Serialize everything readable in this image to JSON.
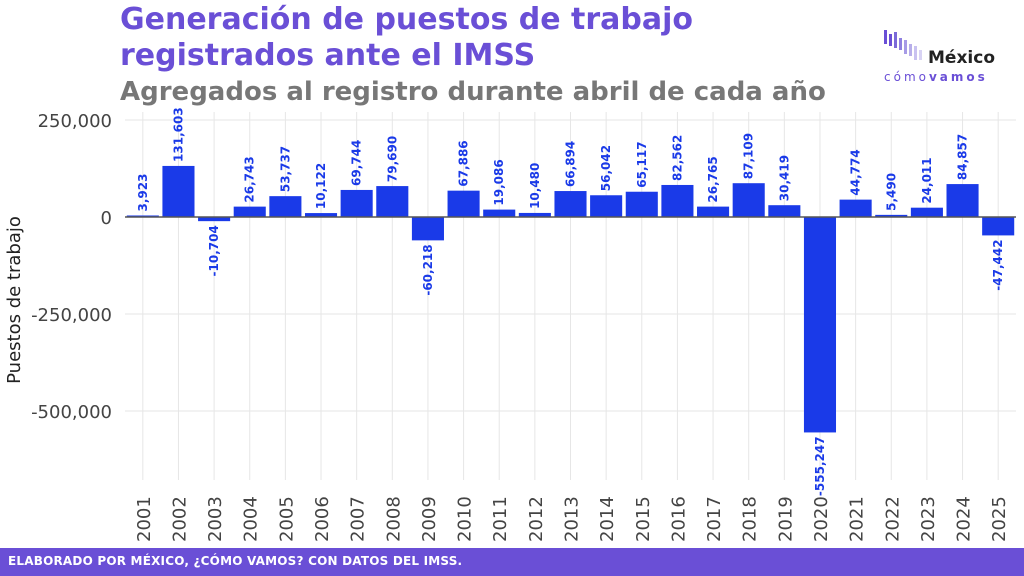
{
  "header": {
    "title": "Generación de puestos de trabajo registrados ante el IMSS",
    "subtitle": "Agregados al registro durante abril de cada año"
  },
  "logo": {
    "line1": "México",
    "line2_light": "cómo",
    "line2_bold": "vamos"
  },
  "footer": {
    "text": "ELABORADO POR MÉXICO, ¿CÓMO VAMOS? CON DATOS DEL IMSS."
  },
  "colors": {
    "bar": "#1a3ae8",
    "accent": "#6a4fd6",
    "grid": "#e6e6e6",
    "zero_line": "#555555"
  },
  "chart_data": {
    "type": "bar",
    "title": "Generación de puestos de trabajo registrados ante el IMSS",
    "subtitle": "Agregados al registro durante abril de cada año",
    "xlabel": "",
    "ylabel": "Puestos de trabajo",
    "ylim": [
      -650000,
      260000
    ],
    "yticks": [
      250000,
      0,
      -250000,
      -500000
    ],
    "ytick_labels": [
      "250,000",
      "0",
      "-250,000",
      "-500,000"
    ],
    "grid": true,
    "categories": [
      "2001",
      "2002",
      "2003",
      "2004",
      "2005",
      "2006",
      "2007",
      "2008",
      "2009",
      "2010",
      "2011",
      "2012",
      "2013",
      "2014",
      "2015",
      "2016",
      "2017",
      "2018",
      "2019",
      "2020",
      "2021",
      "2022",
      "2023",
      "2024",
      "2025"
    ],
    "values": [
      3923,
      131603,
      -10704,
      26743,
      53737,
      10122,
      69744,
      79690,
      -60218,
      67886,
      19086,
      10480,
      66894,
      56042,
      65117,
      82562,
      26765,
      87109,
      30419,
      -555247,
      44774,
      5490,
      24011,
      84857,
      -47442
    ],
    "labels": [
      "3,923",
      "131,603",
      "-10,704",
      "26,743",
      "53,737",
      "10,122",
      "69,744",
      "79,690",
      "-60,218",
      "67,886",
      "19,086",
      "10,480",
      "66,894",
      "56,042",
      "65,117",
      "82,562",
      "26,765",
      "87,109",
      "30,419",
      "-555,247",
      "44,774",
      "5,490",
      "24,011",
      "84,857",
      "-47,442"
    ]
  }
}
